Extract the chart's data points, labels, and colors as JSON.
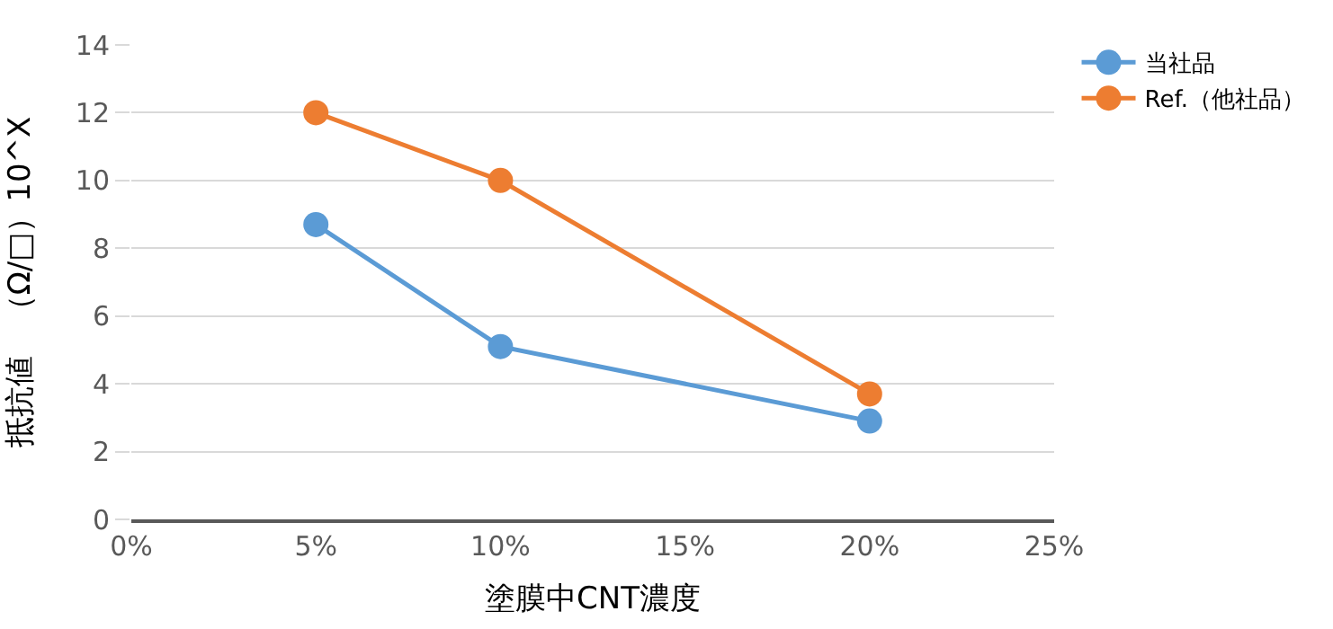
{
  "chart_data": {
    "type": "line",
    "xlabel": "塗膜中CNT濃度",
    "ylabel": "抵抗値　（Ω/□）10^X",
    "x": [
      5,
      10,
      20
    ],
    "series": [
      {
        "name": "当社品",
        "color": "#5b9bd5",
        "values": [
          8.7,
          5.1,
          2.9
        ]
      },
      {
        "name": "Ref.（他社品）",
        "color": "#ed7d31",
        "values": [
          12,
          10,
          3.7
        ]
      }
    ],
    "xlim": [
      0,
      25
    ],
    "xticks": [
      {
        "value": 0,
        "label": "0%"
      },
      {
        "value": 5,
        "label": "5%"
      },
      {
        "value": 10,
        "label": "10%"
      },
      {
        "value": 15,
        "label": "15%"
      },
      {
        "value": 20,
        "label": "20%"
      },
      {
        "value": 25,
        "label": "25%"
      }
    ],
    "ylim": [
      0,
      14
    ],
    "yticks": [
      0,
      2,
      4,
      6,
      8,
      10,
      12,
      14
    ],
    "grid": "y",
    "legend": "top right",
    "marker": "circle",
    "line_style": "solid"
  }
}
